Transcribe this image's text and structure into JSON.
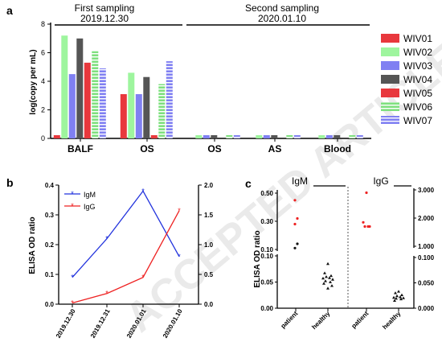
{
  "watermark": "ACCEPTED ARTICLE PREVIEW",
  "panels": {
    "a": "a",
    "b": "b",
    "c": "c"
  },
  "chart_data": [
    {
      "id": "a",
      "type": "bar",
      "ylabel": "log(copy per mL)",
      "ylim": [
        0,
        8
      ],
      "yticks": [
        0,
        2,
        4,
        6,
        8
      ],
      "sampling_labels": [
        {
          "title": "First sampling",
          "date": "2019.12.30"
        },
        {
          "title": "Second sampling",
          "date": "2020.01.10"
        }
      ],
      "categories": [
        "BALF",
        "OS",
        "OS",
        "AS",
        "Blood"
      ],
      "legend_position": "right",
      "series": [
        {
          "name": "WIV01",
          "color": "#e8383d",
          "pattern": "solid",
          "values": [
            0,
            3.1,
            null,
            null,
            null
          ]
        },
        {
          "name": "WIV02",
          "color": "#9ef59e",
          "pattern": "solid",
          "values": [
            7.2,
            4.6,
            0,
            0,
            0
          ]
        },
        {
          "name": "WIV03",
          "color": "#8080f2",
          "pattern": "solid",
          "values": [
            4.5,
            3.1,
            0,
            0,
            0
          ]
        },
        {
          "name": "WIV04",
          "color": "#555555",
          "pattern": "solid",
          "values": [
            7.0,
            4.3,
            0,
            0,
            0
          ]
        },
        {
          "name": "WIV05",
          "color": "#e8383d",
          "pattern": "solid",
          "values": [
            5.3,
            0,
            null,
            null,
            null
          ]
        },
        {
          "name": "WIV06",
          "color": "#7ee07e",
          "pattern": "striped",
          "values": [
            6.1,
            3.8,
            0,
            0,
            0
          ]
        },
        {
          "name": "WIV07",
          "color": "#8080f2",
          "pattern": "striped",
          "values": [
            4.9,
            5.4,
            0,
            0,
            0
          ]
        }
      ]
    },
    {
      "id": "b",
      "type": "line",
      "ylabel": "ELISA OD ratio",
      "categories": [
        "2019.12.30",
        "2019.12.31",
        "2020.01.01",
        "2020.01.10"
      ],
      "y_left_lim": [
        0,
        0.4
      ],
      "y_left_ticks": [
        0.0,
        0.1,
        0.2,
        0.3,
        0.4
      ],
      "y_right_lim": [
        0,
        2.0
      ],
      "y_right_ticks": [
        0.0,
        0.5,
        1.0,
        1.5,
        2.0
      ],
      "legend_position": "top-left",
      "series": [
        {
          "name": "IgM",
          "color": "#2233dd",
          "axis": "left",
          "values": [
            0.09,
            0.22,
            0.38,
            0.16
          ]
        },
        {
          "name": "IgG",
          "color": "#ee2222",
          "axis": "right",
          "values": [
            0.02,
            0.18,
            0.45,
            1.57
          ]
        }
      ]
    },
    {
      "id": "c",
      "type": "scatter",
      "ylabel": "ELISA OD ratio",
      "groups": [
        "IgM",
        "IgG"
      ],
      "categories": [
        "patient",
        "healthy",
        "patient",
        "healthy"
      ],
      "left_axis_ticks_low": [
        0.0,
        0.05,
        0.1
      ],
      "left_axis_ticks_high": [
        0.1,
        0.3,
        0.5
      ],
      "right_axis_ticks_low": [
        0.0,
        0.05,
        0.1
      ],
      "right_axis_ticks_high": [
        1.0,
        2.0,
        3.0
      ],
      "points": {
        "igm_patient": [
          {
            "y": 0.45,
            "color": "#ee2222"
          },
          {
            "y": 0.32,
            "color": "#ee2222"
          },
          {
            "y": 0.28,
            "color": "#ee2222"
          },
          {
            "y": 0.14,
            "color": "#111111"
          },
          {
            "y": 0.11,
            "color": "#111111"
          }
        ],
        "igm_healthy": [
          0.085,
          0.067,
          0.062,
          0.06,
          0.058,
          0.057,
          0.055,
          0.052,
          0.05,
          0.047,
          0.043,
          0.038
        ],
        "igg_patient": [
          2.9,
          1.85,
          1.7,
          1.7,
          1.7
        ],
        "igg_healthy": [
          0.033,
          0.03,
          0.026,
          0.024,
          0.022,
          0.021,
          0.02,
          0.019,
          0.018,
          0.015
        ]
      }
    }
  ]
}
